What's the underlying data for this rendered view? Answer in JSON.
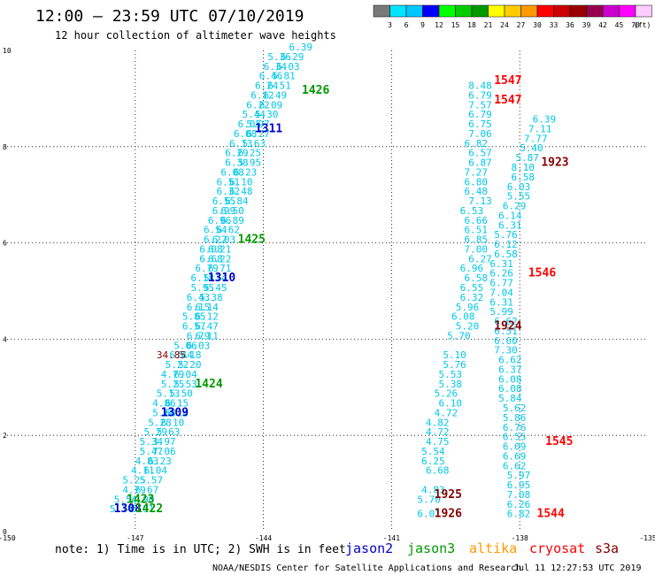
{
  "header": {
    "title": "12:00 — 23:59 UTC 07/10/2019",
    "subtitle": "12 hour collection of altimeter wave heights"
  },
  "colorbar": {
    "colors": [
      "#7a7a7a",
      "#00e5ff",
      "#00c8ff",
      "#0000ff",
      "#00ff00",
      "#00cc00",
      "#009900",
      "#ffff00",
      "#ffcc00",
      "#ff9900",
      "#ff0000",
      "#cc0000",
      "#990000",
      "#99004d",
      "#cc00cc",
      "#ff00ff",
      "#ffccff"
    ],
    "labels": [
      "3",
      "6",
      "9",
      "12",
      "15",
      "18",
      "21",
      "24",
      "27",
      "30",
      "33",
      "36",
      "39",
      "42",
      "45",
      "70"
    ],
    "unit": "(ft)"
  },
  "footer": {
    "note": "note:  1) Time is in UTC;  2) SWH is in feet",
    "credit": "NOAA/NESDIS Center for Satellite Applications and Research",
    "timestamp": "Jul 11 12:27:53 UTC 2019",
    "satellites": [
      {
        "name": "jason2",
        "color": "#0000cc"
      },
      {
        "name": "jason3",
        "color": "#009900"
      },
      {
        "name": "altika",
        "color": "#ff9900"
      },
      {
        "name": "cryosat",
        "color": "#ff0000"
      },
      {
        "name": "s3a",
        "color": "#880000"
      }
    ]
  },
  "chart_data": {
    "type": "scatter",
    "title": "12:00 — 23:59 UTC 07/10/2019",
    "subtitle": "12 hour collection of altimeter wave heights",
    "xlim": [
      -150,
      -135
    ],
    "ylim": [
      0,
      10
    ],
    "x_ticks": [
      "-150",
      "-147",
      "-144",
      "-141",
      "-138",
      "-135"
    ],
    "y_ticks": [
      "0",
      "2",
      "4",
      "6",
      "8",
      "10"
    ],
    "grid": true,
    "point_color": "#00c8e8",
    "series": [
      {
        "values": [
          [
            -147.6,
            0.4,
            "5.74"
          ],
          [
            -147.1,
            0.4,
            "6.51"
          ],
          [
            -147.5,
            0.6,
            "5.54"
          ],
          [
            -147.1,
            0.6,
            "4.90"
          ],
          [
            -147.3,
            0.8,
            "4.79"
          ],
          [
            -147.0,
            0.8,
            "6.67"
          ],
          [
            -147.3,
            1.0,
            "5.25"
          ],
          [
            -146.9,
            1.0,
            "5.57"
          ],
          [
            -147.1,
            1.2,
            "4.11"
          ],
          [
            -146.8,
            1.2,
            "6.04"
          ],
          [
            -147.0,
            1.4,
            "4.83"
          ],
          [
            -146.7,
            1.4,
            "6.23"
          ],
          [
            -146.9,
            1.6,
            "5.47"
          ],
          [
            -146.6,
            1.6,
            "7.06"
          ],
          [
            -146.9,
            1.8,
            "5.34"
          ],
          [
            -146.6,
            1.8,
            "3.97"
          ],
          [
            -146.8,
            2.0,
            "5.29"
          ],
          [
            -146.5,
            2.0,
            "5.63"
          ],
          [
            -146.7,
            2.2,
            "5.28"
          ],
          [
            -146.4,
            2.2,
            "6.10"
          ],
          [
            -146.6,
            2.4,
            "5.68"
          ],
          [
            -146.3,
            2.4,
            "6.14"
          ],
          [
            -146.6,
            2.6,
            "4.86"
          ],
          [
            -146.3,
            2.6,
            "6.15"
          ],
          [
            -146.5,
            2.8,
            "5.13"
          ],
          [
            -146.2,
            2.8,
            "5.50"
          ],
          [
            -146.4,
            3.0,
            "5.25"
          ],
          [
            -146.1,
            3.0,
            "5.53"
          ],
          [
            -146.4,
            3.2,
            "4.79"
          ],
          [
            -146.1,
            3.2,
            "6.04"
          ],
          [
            -146.3,
            3.4,
            "5.22"
          ],
          [
            -146.0,
            3.4,
            "5.20"
          ],
          [
            -146.2,
            3.6,
            "6.44"
          ],
          [
            -146.0,
            3.6,
            "5.18"
          ],
          [
            -146.1,
            3.8,
            "5.06"
          ],
          [
            -145.8,
            3.8,
            "6.03"
          ],
          [
            -145.8,
            4.0,
            "6.79"
          ],
          [
            -145.6,
            4.0,
            "6.11"
          ],
          [
            -145.9,
            4.2,
            "6.57"
          ],
          [
            -145.6,
            4.2,
            "6.47"
          ],
          [
            -145.9,
            4.4,
            "5.85"
          ],
          [
            -145.6,
            4.4,
            "6.12"
          ],
          [
            -145.8,
            4.6,
            "6.15"
          ],
          [
            -145.6,
            4.6,
            "6.14"
          ],
          [
            -145.8,
            4.8,
            "6.43"
          ],
          [
            -145.5,
            4.8,
            "5.38"
          ],
          [
            -145.7,
            5.0,
            "5.95"
          ],
          [
            -145.4,
            5.0,
            "5.45"
          ],
          [
            -145.7,
            5.2,
            "6.18"
          ],
          [
            -145.4,
            5.2,
            "5.74"
          ],
          [
            -145.6,
            5.4,
            "6.79"
          ],
          [
            -145.3,
            5.4,
            "6.71"
          ],
          [
            -145.5,
            5.6,
            "6.68"
          ],
          [
            -145.3,
            5.6,
            "6.22"
          ],
          [
            -145.5,
            5.8,
            "6.08"
          ],
          [
            -145.3,
            5.8,
            "6.21"
          ],
          [
            -145.4,
            6.0,
            "6.22"
          ],
          [
            -145.2,
            6.0,
            "6.03"
          ],
          [
            -145.4,
            6.2,
            "6.54"
          ],
          [
            -145.1,
            6.2,
            "6.62"
          ],
          [
            -145.3,
            6.4,
            "6.96"
          ],
          [
            -145.0,
            6.4,
            "6.89"
          ],
          [
            -145.2,
            6.6,
            "6.99"
          ],
          [
            -145.0,
            6.6,
            "6.50"
          ],
          [
            -145.2,
            6.8,
            "6.55"
          ],
          [
            -144.9,
            6.8,
            "6.84"
          ],
          [
            -145.1,
            7.0,
            "6.32"
          ],
          [
            -144.8,
            7.0,
            "6.48"
          ],
          [
            -145.1,
            7.2,
            "6.51"
          ],
          [
            -144.8,
            7.2,
            "6.10"
          ],
          [
            -145.0,
            7.4,
            "6.08"
          ],
          [
            -144.7,
            7.4,
            "6.23"
          ],
          [
            -144.9,
            7.6,
            "6.38"
          ],
          [
            -144.6,
            7.6,
            "5.95"
          ],
          [
            -144.9,
            7.8,
            "6.29"
          ],
          [
            -144.6,
            7.8,
            "6.25"
          ],
          [
            -144.8,
            8.0,
            "6.13"
          ],
          [
            -144.5,
            8.0,
            "5.63"
          ],
          [
            -144.7,
            8.2,
            "6.08"
          ],
          [
            -144.4,
            8.2,
            "6.27"
          ],
          [
            -144.6,
            8.4,
            "6.05"
          ],
          [
            -144.4,
            8.4,
            "5.97"
          ],
          [
            -144.5,
            8.6,
            "5.44"
          ],
          [
            -144.2,
            8.6,
            "5.30"
          ],
          [
            -144.4,
            8.8,
            "6.22"
          ],
          [
            -144.1,
            8.8,
            "6.09"
          ],
          [
            -144.3,
            9.0,
            "6.12"
          ],
          [
            -144.0,
            9.0,
            "6.49"
          ],
          [
            -144.2,
            9.2,
            "6.24"
          ],
          [
            -143.9,
            9.2,
            "6.51"
          ],
          [
            -144.1,
            9.4,
            "6.46"
          ],
          [
            -143.8,
            9.4,
            "5.81"
          ],
          [
            -144.0,
            9.6,
            "6.34"
          ],
          [
            -143.7,
            9.6,
            "6.03"
          ],
          [
            -143.9,
            9.8,
            "5.36"
          ],
          [
            -143.6,
            9.8,
            "6.29"
          ],
          [
            -143.4,
            10.0,
            "6.39"
          ],
          [
            -140.4,
            0.3,
            "6.01"
          ],
          [
            -140.4,
            0.6,
            "5.70"
          ],
          [
            -140.3,
            0.8,
            "4.83"
          ],
          [
            -140.2,
            1.2,
            "6.68"
          ],
          [
            -140.3,
            1.4,
            "6.25"
          ],
          [
            -140.3,
            1.6,
            "5.54"
          ],
          [
            -140.2,
            1.8,
            "4.75"
          ],
          [
            -140.2,
            2.0,
            "4.72"
          ],
          [
            -140.2,
            2.2,
            "4.82"
          ],
          [
            -140.0,
            2.4,
            "4.72"
          ],
          [
            -139.9,
            2.6,
            "6.10"
          ],
          [
            -140.0,
            2.8,
            "5.26"
          ],
          [
            -139.9,
            3.0,
            "5.38"
          ],
          [
            -139.9,
            3.2,
            "5.53"
          ],
          [
            -139.8,
            3.4,
            "5.76"
          ],
          [
            -139.8,
            3.6,
            "5.10"
          ],
          [
            -139.7,
            4.0,
            "5.70"
          ],
          [
            -139.5,
            4.2,
            "5.20"
          ],
          [
            -139.6,
            4.4,
            "6.08"
          ],
          [
            -139.5,
            4.6,
            "5.96"
          ],
          [
            -139.4,
            4.8,
            "6.32"
          ],
          [
            -139.4,
            5.0,
            "6.55"
          ],
          [
            -139.3,
            5.2,
            "6.58"
          ],
          [
            -139.4,
            5.4,
            "6.96"
          ],
          [
            -139.2,
            5.6,
            "6.27"
          ],
          [
            -139.3,
            5.8,
            "7.00"
          ],
          [
            -139.3,
            6.0,
            "6.85"
          ],
          [
            -139.3,
            6.2,
            "6.51"
          ],
          [
            -139.3,
            6.4,
            "6.66"
          ],
          [
            -139.4,
            6.6,
            "6.53"
          ],
          [
            -139.2,
            6.8,
            "7.13"
          ],
          [
            -139.3,
            7.0,
            "6.48"
          ],
          [
            -139.3,
            7.2,
            "6.80"
          ],
          [
            -139.3,
            7.4,
            "7.27"
          ],
          [
            -139.2,
            7.6,
            "6.87"
          ],
          [
            -139.2,
            7.8,
            "6.57"
          ],
          [
            -139.3,
            8.0,
            "6.82"
          ],
          [
            -139.2,
            8.2,
            "7.06"
          ],
          [
            -139.2,
            8.4,
            "6.75"
          ],
          [
            -139.2,
            8.6,
            "6.79"
          ],
          [
            -139.2,
            8.8,
            "7.57"
          ],
          [
            -139.2,
            9.0,
            "6.79"
          ],
          [
            -139.2,
            9.2,
            "8.48"
          ],
          [
            -138.3,
            0.3,
            "6.82"
          ],
          [
            -138.3,
            0.5,
            "6.26"
          ],
          [
            -138.3,
            0.7,
            "7.08"
          ],
          [
            -138.3,
            0.9,
            "6.95"
          ],
          [
            -138.3,
            1.1,
            "5.97"
          ],
          [
            -138.4,
            1.3,
            "6.62"
          ],
          [
            -138.4,
            1.5,
            "6.69"
          ],
          [
            -138.4,
            1.7,
            "6.09"
          ],
          [
            -138.4,
            1.9,
            "6.55"
          ],
          [
            -138.4,
            2.1,
            "6.76"
          ],
          [
            -138.4,
            2.3,
            "5.86"
          ],
          [
            -138.4,
            2.5,
            "5.62"
          ],
          [
            -138.5,
            2.7,
            "5.84"
          ],
          [
            -138.5,
            2.9,
            "6.08"
          ],
          [
            -138.5,
            3.1,
            "6.08"
          ],
          [
            -138.5,
            3.3,
            "6.37"
          ],
          [
            -138.5,
            3.5,
            "6.62"
          ],
          [
            -138.6,
            3.7,
            "7.30"
          ],
          [
            -138.6,
            3.9,
            "6.60"
          ],
          [
            -138.6,
            4.1,
            "6.51"
          ],
          [
            -138.6,
            4.3,
            "6.62"
          ],
          [
            -138.7,
            4.5,
            "5.99"
          ],
          [
            -138.7,
            4.7,
            "6.31"
          ],
          [
            -138.7,
            4.9,
            "7.04"
          ],
          [
            -138.7,
            5.1,
            "6.77"
          ],
          [
            -138.7,
            5.3,
            "6.26"
          ],
          [
            -138.7,
            5.5,
            "6.31"
          ],
          [
            -138.6,
            5.7,
            "6.58"
          ],
          [
            -138.6,
            5.9,
            "6.12"
          ],
          [
            -138.6,
            6.1,
            "5.76"
          ],
          [
            -138.5,
            6.3,
            "6.31"
          ],
          [
            -138.5,
            6.5,
            "6.14"
          ],
          [
            -138.4,
            6.7,
            "6.29"
          ],
          [
            -138.3,
            6.9,
            "5.55"
          ],
          [
            -138.3,
            7.1,
            "6.03"
          ],
          [
            -138.2,
            7.3,
            "6.58"
          ],
          [
            -138.2,
            7.5,
            "8.10"
          ],
          [
            -138.1,
            7.7,
            "5.87"
          ],
          [
            -138.0,
            7.9,
            "5.40"
          ],
          [
            -137.9,
            8.1,
            "7.77"
          ],
          [
            -137.8,
            8.3,
            "7.11"
          ],
          [
            -137.7,
            8.5,
            "6.39"
          ]
        ]
      }
    ],
    "pass_labels": [
      {
        "text": "1426",
        "x": -143.1,
        "y": 9.1,
        "color": "#009900"
      },
      {
        "text": "1311",
        "x": -144.2,
        "y": 8.3,
        "color": "#0000cc"
      },
      {
        "text": "1425",
        "x": -144.6,
        "y": 6.0,
        "color": "#009900"
      },
      {
        "text": "1310",
        "x": -145.3,
        "y": 5.2,
        "color": "#0000cc"
      },
      {
        "text": "1424",
        "x": -145.6,
        "y": 3.0,
        "color": "#009900"
      },
      {
        "text": "1309",
        "x": -146.4,
        "y": 2.4,
        "color": "#0000cc"
      },
      {
        "text": "1423",
        "x": -147.2,
        "y": 0.6,
        "color": "#009900"
      },
      {
        "text": "1308",
        "x": -147.5,
        "y": 0.4,
        "color": "#0000cc"
      },
      {
        "text": "1422",
        "x": -147.0,
        "y": 0.4,
        "color": "#009900"
      },
      {
        "text": "1547",
        "x": -138.6,
        "y": 9.3,
        "color": "#ff0000"
      },
      {
        "text": "1547",
        "x": -138.6,
        "y": 8.9,
        "color": "#ff0000"
      },
      {
        "text": "1923",
        "x": -137.5,
        "y": 7.6,
        "color": "#880000"
      },
      {
        "text": "1546",
        "x": -137.8,
        "y": 5.3,
        "color": "#ff0000"
      },
      {
        "text": "1924",
        "x": -138.6,
        "y": 4.2,
        "color": "#880000"
      },
      {
        "text": "1545",
        "x": -137.4,
        "y": 1.8,
        "color": "#ff0000"
      },
      {
        "text": "1925",
        "x": -140.0,
        "y": 0.7,
        "color": "#880000"
      },
      {
        "text": "1926",
        "x": -140.0,
        "y": 0.3,
        "color": "#880000"
      },
      {
        "text": "1544",
        "x": -137.6,
        "y": 0.3,
        "color": "#ff0000"
      }
    ],
    "special_values": [
      {
        "text": "34.85",
        "x": -146.5,
        "y": 3.6,
        "color": "#880000"
      }
    ]
  }
}
